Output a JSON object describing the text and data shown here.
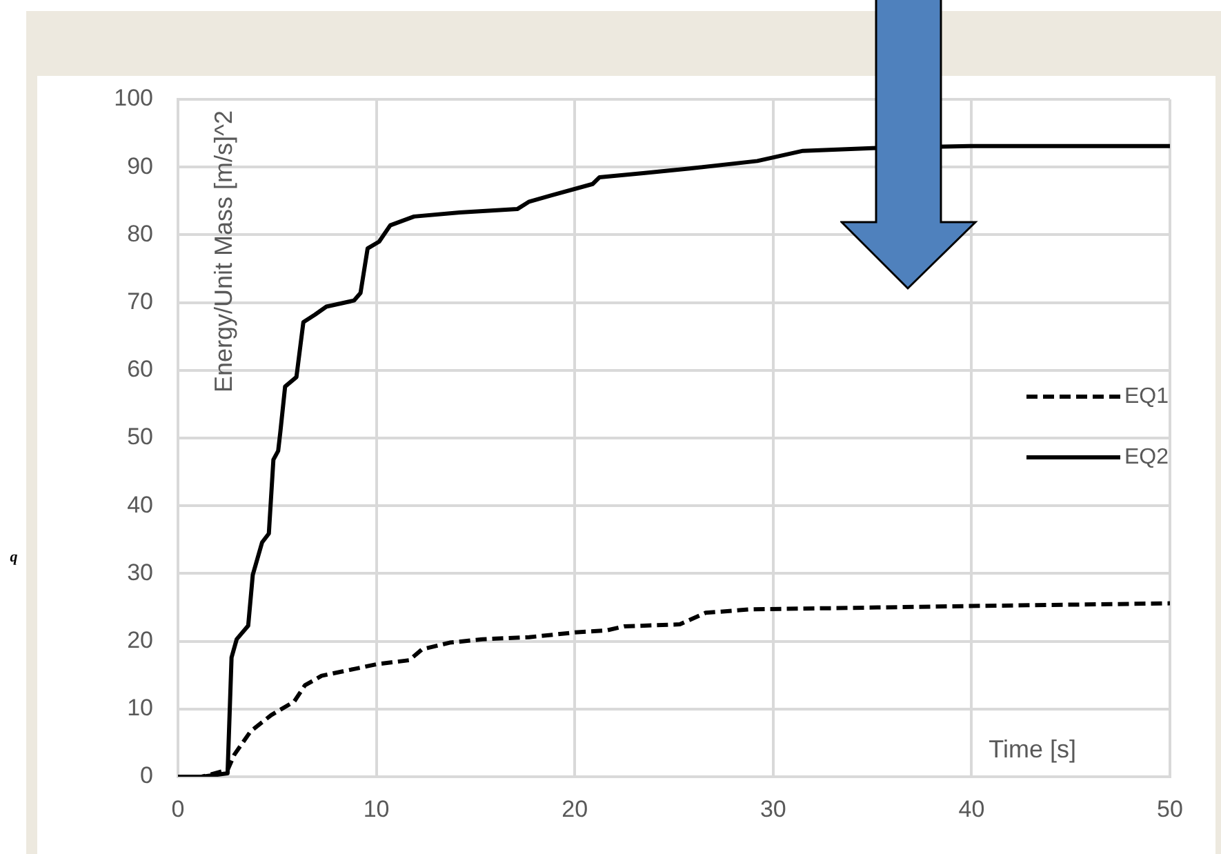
{
  "chart_data": {
    "type": "line",
    "xlabel": "Time [s]",
    "ylabel": "Energy/Unit Mass [m/s]^2",
    "annotations": [
      "q"
    ],
    "xlim": [
      0,
      50
    ],
    "xticks": [
      0,
      10,
      20,
      30,
      40,
      50
    ],
    "ylim": [
      0,
      100
    ],
    "yticks": [
      0,
      10,
      20,
      30,
      40,
      50,
      60,
      70,
      80,
      90,
      100
    ],
    "grid": true,
    "legend": "right",
    "marker": "none",
    "series": [
      {
        "name": "EQ1",
        "color": "#000000",
        "line_style": "dashed",
        "x": [
          0,
          1.2,
          2.5,
          2.85,
          3.66,
          4.7,
          5.86,
          6.4,
          7.24,
          8.87,
          10,
          11.65,
          12.3,
          13.7,
          15.35,
          17.7,
          20,
          21.6,
          22.5,
          25.3,
          26.6,
          28.8,
          39.9,
          50
        ],
        "values": [
          0,
          0,
          1,
          3.3,
          6.7,
          9.1,
          11.1,
          13.5,
          14.9,
          15.9,
          16.6,
          17.2,
          18.8,
          19.8,
          20.3,
          20.6,
          21.3,
          21.6,
          22.2,
          22.5,
          24.2,
          24.7,
          25.2,
          25.6
        ]
      },
      {
        "name": "EQ2",
        "color": "#000000",
        "line_style": "solid",
        "x": [
          0,
          1.2,
          2.5,
          2.7,
          2.96,
          3.54,
          3.77,
          4.24,
          4.58,
          4.81,
          5.05,
          5.16,
          5.4,
          5.97,
          6.32,
          6.9,
          7.48,
          8.87,
          9.2,
          9.56,
          10.14,
          10.7,
          11.9,
          14.2,
          17.1,
          17.7,
          18.8,
          20.9,
          21.25,
          23.45,
          25.8,
          29.2,
          31.5,
          35,
          39.9,
          50
        ],
        "values": [
          0,
          0,
          0.5,
          17.6,
          20.3,
          22.3,
          29.8,
          34.6,
          35.9,
          46.8,
          48.1,
          50.9,
          57.6,
          59,
          67.1,
          68.2,
          69.4,
          70.3,
          71.4,
          78,
          79,
          81.4,
          82.7,
          83.3,
          83.8,
          84.9,
          85.8,
          87.5,
          88.5,
          89.1,
          89.8,
          90.9,
          92.4,
          92.8,
          93.1,
          93.1
        ]
      }
    ]
  }
}
